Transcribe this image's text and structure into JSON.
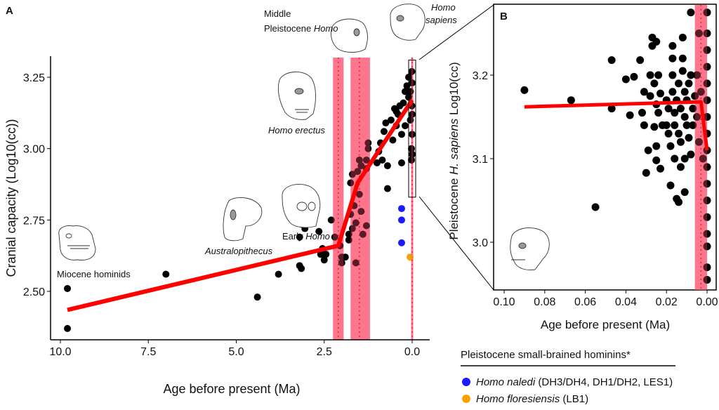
{
  "chart_data": [
    {
      "panel": "A",
      "type": "scatter",
      "xlabel": "Age before present (Ma)",
      "ylabel": "Cranial capacity (Log10(cc))",
      "xlim": [
        10.3,
        -0.5
      ],
      "ylim": [
        2.33,
        3.32
      ],
      "x_reversed": true,
      "xticks": [
        "10.0",
        "7.5",
        "5.0",
        "2.5",
        "0.0"
      ],
      "xtick_values": [
        10,
        7.5,
        5,
        2.5,
        0
      ],
      "yticks": [
        "2.50",
        "2.75",
        "3.00",
        "3.25"
      ],
      "ytick_values": [
        2.5,
        2.75,
        3.0,
        3.25
      ],
      "grid": false,
      "annotations": {
        "miocene": "Miocene hominids",
        "australopithecus": "Australopithecus",
        "early_homo_1": "Early ",
        "early_homo_2": "Homo",
        "erectus": "Homo erectus",
        "mph_1": "Middle",
        "mph_2": "Pleistocene ",
        "mph_3": "Homo",
        "sapiens_1": "Homo",
        "sapiens_2": "sapiens"
      },
      "series": [
        {
          "color": "#000000",
          "points": [
            [
              9.8,
              2.51
            ],
            [
              9.8,
              2.37
            ],
            [
              7.0,
              2.56
            ],
            [
              4.4,
              2.48
            ],
            [
              3.8,
              2.56
            ],
            [
              3.2,
              2.59
            ],
            [
              3.15,
              2.58
            ],
            [
              3.2,
              2.69
            ],
            [
              3.05,
              2.72
            ],
            [
              2.65,
              2.71
            ],
            [
              2.6,
              2.63
            ],
            [
              2.55,
              2.65
            ],
            [
              2.5,
              2.61
            ],
            [
              2.45,
              2.63
            ],
            [
              2.3,
              2.75
            ],
            [
              2.2,
              2.69
            ],
            [
              2.05,
              2.66
            ],
            [
              2.0,
              2.62
            ],
            [
              2.0,
              2.6
            ],
            [
              1.9,
              2.62
            ],
            [
              1.8,
              2.68
            ],
            [
              1.8,
              2.7
            ],
            [
              1.75,
              2.77
            ],
            [
              1.75,
              2.88
            ],
            [
              1.7,
              2.91
            ],
            [
              1.7,
              2.72
            ],
            [
              1.65,
              2.8
            ],
            [
              1.6,
              2.74
            ],
            [
              1.6,
              2.6
            ],
            [
              1.55,
              2.92
            ],
            [
              1.5,
              2.96
            ],
            [
              1.5,
              2.84
            ],
            [
              1.45,
              2.94
            ],
            [
              1.45,
              2.78
            ],
            [
              1.4,
              2.7
            ],
            [
              1.3,
              2.73
            ],
            [
              1.3,
              2.93
            ],
            [
              1.3,
              2.96
            ],
            [
              1.25,
              3.02
            ],
            [
              1.25,
              3.0
            ],
            [
              1.0,
              2.95
            ],
            [
              0.95,
              2.99
            ],
            [
              0.9,
              3.02
            ],
            [
              0.85,
              2.96
            ],
            [
              0.8,
              3.06
            ],
            [
              0.75,
              3.09
            ],
            [
              0.7,
              2.86
            ],
            [
              0.7,
              2.94
            ],
            [
              0.6,
              3.1
            ],
            [
              0.55,
              3.03
            ],
            [
              0.5,
              3.14
            ],
            [
              0.45,
              3.08
            ],
            [
              0.4,
              3.12
            ],
            [
              0.35,
              3.15
            ],
            [
              0.3,
              3.05
            ],
            [
              0.25,
              3.16
            ],
            [
              0.2,
              3.2
            ],
            [
              0.15,
              3.22
            ],
            [
              0.1,
              3.25
            ],
            [
              0.05,
              3.2
            ],
            [
              0.05,
              3.1
            ],
            [
              0.02,
              3.0
            ],
            [
              0.02,
              2.96
            ],
            [
              0.01,
              3.27
            ],
            [
              0.01,
              3.15
            ],
            [
              0.3,
              2.95
            ],
            [
              0.45,
              3.13
            ],
            [
              0.2,
              3.08
            ],
            [
              0.1,
              3.18
            ],
            [
              0.0,
              3.23
            ],
            [
              0.0,
              3.12
            ],
            [
              0.0,
              3.05
            ],
            [
              0.0,
              2.98
            ]
          ]
        },
        {
          "name": "Homo naledi",
          "color": "#1a1aff",
          "points": [
            [
              0.3,
              2.79
            ],
            [
              0.3,
              2.75
            ],
            [
              0.3,
              2.67
            ]
          ]
        },
        {
          "name": "Homo floresiensis",
          "color": "#f5a300",
          "points": [
            [
              0.06,
              2.62
            ]
          ]
        }
      ],
      "fit_line": {
        "color": "#ff0000",
        "points": [
          [
            9.8,
            2.435
          ],
          [
            2.1,
            2.66
          ],
          [
            1.55,
            2.88
          ],
          [
            0.0,
            3.17
          ]
        ]
      },
      "breakpoint_bands": [
        {
          "center": 2.1,
          "range": [
            2.25,
            1.95
          ]
        },
        {
          "center": 1.5,
          "range": [
            1.75,
            1.2
          ]
        },
        {
          "center": 0.0,
          "range": [
            0.03,
            -0.03
          ]
        }
      ],
      "inset_range": {
        "x": [
          0.1,
          -0.1
        ],
        "y": [
          2.83,
          3.31
        ]
      }
    },
    {
      "panel": "B",
      "type": "scatter",
      "xlabel": "Age before present (Ma)",
      "ylabel_1": "Pleistocene ",
      "ylabel_2": "H. sapiens",
      "ylabel_3": " Log10(cc)",
      "xlim": [
        0.105,
        -0.0045
      ],
      "ylim": [
        2.943,
        3.284
      ],
      "x_reversed": true,
      "xticks": [
        "0.10",
        "0.08",
        "0.06",
        "0.04",
        "0.02",
        "0.00"
      ],
      "xtick_values": [
        0.1,
        0.08,
        0.06,
        0.04,
        0.02,
        0.0
      ],
      "yticks": [
        "3.0",
        "3.1",
        "3.2"
      ],
      "ytick_values": [
        3.0,
        3.1,
        3.2
      ],
      "grid": false,
      "series": [
        {
          "color": "#000000",
          "points": [
            [
              0.09,
              3.182
            ],
            [
              0.067,
              3.17
            ],
            [
              0.055,
              3.042
            ],
            [
              0.047,
              3.218
            ],
            [
              0.047,
              3.16
            ],
            [
              0.04,
              3.195
            ],
            [
              0.038,
              3.152
            ],
            [
              0.036,
              3.198
            ],
            [
              0.033,
              3.218
            ],
            [
              0.032,
              3.155
            ],
            [
              0.031,
              3.18
            ],
            [
              0.031,
              3.14
            ],
            [
              0.03,
              3.083
            ],
            [
              0.029,
              3.11
            ],
            [
              0.028,
              3.175
            ],
            [
              0.028,
              3.2
            ],
            [
              0.027,
              3.245
            ],
            [
              0.027,
              3.235
            ],
            [
              0.026,
              3.138
            ],
            [
              0.026,
              3.19
            ],
            [
              0.025,
              3.24
            ],
            [
              0.025,
              3.165
            ],
            [
              0.025,
              3.115
            ],
            [
              0.025,
              3.098
            ],
            [
              0.024,
              3.2
            ],
            [
              0.024,
              3.155
            ],
            [
              0.023,
              3.178
            ],
            [
              0.023,
              3.088
            ],
            [
              0.022,
              3.14
            ],
            [
              0.02,
              3.14
            ],
            [
              0.02,
              3.17
            ],
            [
              0.019,
              3.16
            ],
            [
              0.019,
              3.13
            ],
            [
              0.018,
              3.068
            ],
            [
              0.018,
              3.115
            ],
            [
              0.017,
              3.235
            ],
            [
              0.017,
              3.22
            ],
            [
              0.017,
              3.2
            ],
            [
              0.017,
              3.18
            ],
            [
              0.016,
              3.155
            ],
            [
              0.016,
              3.14
            ],
            [
              0.016,
              3.1
            ],
            [
              0.015,
              3.052
            ],
            [
              0.015,
              3.17
            ],
            [
              0.014,
              3.048
            ],
            [
              0.014,
              3.13
            ],
            [
              0.014,
              3.19
            ],
            [
              0.013,
              3.12
            ],
            [
              0.013,
              3.09
            ],
            [
              0.013,
              3.16
            ],
            [
              0.012,
              3.245
            ],
            [
              0.012,
              3.22
            ],
            [
              0.012,
              3.205
            ],
            [
              0.011,
              3.18
            ],
            [
              0.011,
              3.15
            ],
            [
              0.011,
              3.06
            ],
            [
              0.011,
              3.1
            ],
            [
              0.01,
              3.14
            ],
            [
              0.01,
              3.17
            ],
            [
              0.009,
              3.19
            ],
            [
              0.009,
              3.125
            ],
            [
              0.008,
              3.2
            ],
            [
              0.008,
              3.105
            ],
            [
              0.008,
              3.275
            ],
            [
              0.007,
              3.16
            ],
            [
              0.007,
              3.14
            ],
            [
              0.006,
              3.175
            ],
            [
              0.005,
              3.2
            ],
            [
              0.005,
              3.15
            ],
            [
              0.004,
              3.25
            ],
            [
              0.004,
              3.12
            ],
            [
              0.003,
              3.18
            ],
            [
              0.002,
              3.1
            ],
            [
              0.0,
              3.275
            ],
            [
              0.0,
              3.25
            ],
            [
              0.0,
              3.23
            ],
            [
              0.0,
              3.21
            ],
            [
              0.0,
              3.19
            ],
            [
              0.0,
              3.17
            ],
            [
              0.0,
              3.15
            ],
            [
              0.0,
              3.13
            ],
            [
              0.0,
              3.11
            ],
            [
              0.0,
              3.09
            ],
            [
              0.0,
              3.07
            ],
            [
              0.0,
              3.05
            ],
            [
              0.0,
              3.03
            ],
            [
              0.0,
              3.01
            ],
            [
              0.0,
              2.995
            ],
            [
              0.0,
              2.97
            ],
            [
              0.0,
              2.955
            ]
          ]
        }
      ],
      "fit_line": {
        "color": "#ff0000",
        "points": [
          [
            0.09,
            3.162
          ],
          [
            0.003,
            3.168
          ],
          [
            0.0,
            3.11
          ]
        ]
      },
      "breakpoint_bands": [
        {
          "center": 0.003,
          "range": [
            0.006,
            0.0
          ]
        }
      ]
    }
  ],
  "legend": {
    "title": "Pleistocene small-brained hominins*",
    "items": [
      {
        "name": "Homo naledi",
        "detail": " (DH3/DH4, DH1/DH2, LES1)",
        "color": "#1a1aff"
      },
      {
        "name": "Homo floresiensis",
        "detail": " (LB1)",
        "color": "#f5a300"
      }
    ]
  },
  "panel_labels": {
    "a": "A",
    "b": "B"
  }
}
